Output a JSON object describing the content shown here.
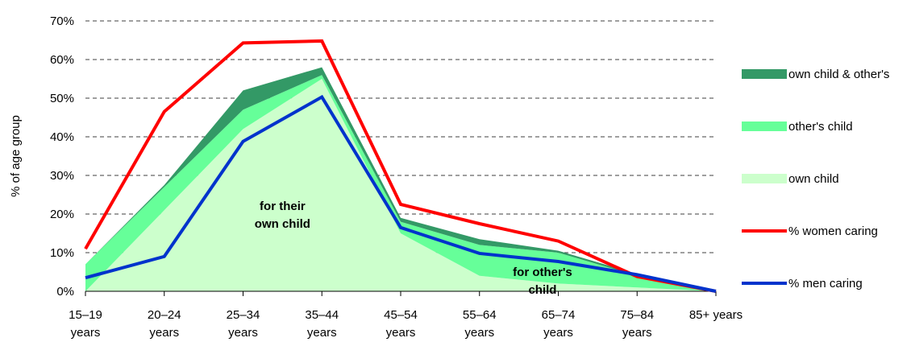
{
  "chart_data": {
    "type": "area",
    "categories": [
      [
        "15–19",
        "years"
      ],
      [
        "20–24",
        "years"
      ],
      [
        "25–34",
        "years"
      ],
      [
        "35–44",
        "years"
      ],
      [
        "45–54",
        "years"
      ],
      [
        "55–64",
        "years"
      ],
      [
        "65–74",
        "years"
      ],
      [
        "75–84",
        "years"
      ],
      [
        "85+ years"
      ]
    ],
    "ylabel": "% of age group",
    "ylim": [
      0,
      70
    ],
    "yticks": [
      0,
      10,
      20,
      30,
      40,
      50,
      60,
      70
    ],
    "ytick_labels": [
      "0%",
      "10%",
      "20%",
      "30%",
      "40%",
      "50%",
      "60%",
      "70%"
    ],
    "grid": "horizontal dashed",
    "legend_position": "right",
    "stacked_areas": [
      {
        "name": "own child",
        "color": "#ccffcc",
        "values": [
          0,
          21,
          42,
          55,
          15,
          4,
          2,
          1,
          0
        ]
      },
      {
        "name": "other's child",
        "color": "#66ff99",
        "values": [
          7,
          6,
          5,
          1,
          3,
          8,
          8,
          3,
          0
        ]
      },
      {
        "name": "own child & other's",
        "color": "#339966",
        "values": [
          0,
          0.5,
          5,
          2,
          1,
          1.5,
          0.5,
          0.5,
          0
        ]
      }
    ],
    "lines": [
      {
        "name": "% women caring",
        "color": "#ff0000",
        "values": [
          11,
          46.5,
          64.3,
          64.8,
          22.5,
          17.5,
          13,
          3.8,
          0
        ]
      },
      {
        "name": "% men caring",
        "color": "#0033cc",
        "values": [
          3.5,
          9,
          38.8,
          50.3,
          16.5,
          9.8,
          7.7,
          4.3,
          0
        ]
      }
    ],
    "annotations": [
      {
        "lines": [
          "for their",
          "own child"
        ],
        "x_category": 2.5,
        "y": 21
      },
      {
        "lines": [
          "for other's",
          "child"
        ],
        "x_category": 5.8,
        "y": 4
      }
    ]
  }
}
